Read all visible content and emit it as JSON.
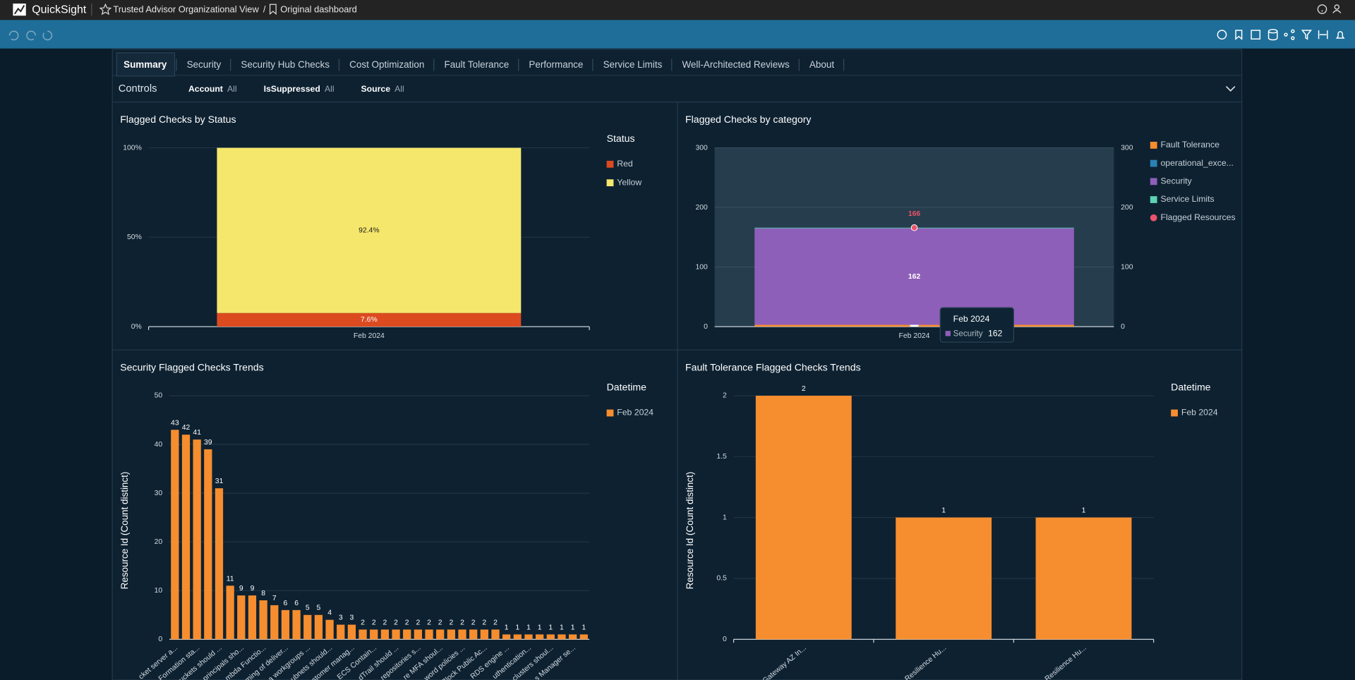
{
  "header": {
    "app": "QuickSight",
    "breadcrumb": [
      "Trusted Advisor Organizational View",
      "Original dashboard"
    ],
    "separator": "/"
  },
  "tabs": {
    "items": [
      "Summary",
      "Security",
      "Security Hub Checks",
      "Cost Optimization",
      "Fault Tolerance",
      "Performance",
      "Service Limits",
      "Well-Architected Reviews",
      "About"
    ],
    "active": 0
  },
  "controls": {
    "title": "Controls",
    "filters": [
      {
        "name": "Account",
        "value": "All"
      },
      {
        "name": "IsSuppressed",
        "value": "All"
      },
      {
        "name": "Source",
        "value": "All"
      }
    ]
  },
  "chart_data": [
    {
      "type": "bar",
      "stacked": true,
      "title": "Flagged Checks by Status",
      "legend_title": "Status",
      "categories": [
        "Feb 2024"
      ],
      "series": [
        {
          "name": "Red",
          "color": "#dc4a20",
          "values": [
            7.6
          ],
          "value_labels": [
            "7.6%"
          ]
        },
        {
          "name": "Yellow",
          "color": "#f5e76c",
          "values": [
            92.4
          ],
          "value_labels": [
            "92.4%"
          ]
        }
      ],
      "ylim": [
        0,
        100
      ],
      "yticks": [
        {
          "value": 0,
          "label": "0%"
        },
        {
          "value": 50,
          "label": "50%"
        },
        {
          "value": 100,
          "label": "100%"
        }
      ],
      "grid": true
    },
    {
      "type": "bar",
      "stacked": true,
      "title": "Flagged Checks by category",
      "categories": [
        "Feb 2024"
      ],
      "series": [
        {
          "name": "Fault Tolerance",
          "color": "#f68d2e",
          "values": [
            3
          ],
          "show_label": true
        },
        {
          "name": "operational_exce...",
          "color": "#2a82b4",
          "values": [
            0
          ]
        },
        {
          "name": "Security",
          "color": "#8e5fb8",
          "values": [
            162
          ],
          "show_label": true
        },
        {
          "name": "Service Limits",
          "color": "#5cd3b2",
          "values": [
            1
          ]
        },
        {
          "name": "Flagged Resources",
          "color": "#e9536b",
          "type": "line",
          "axis": "y2",
          "values": [
            166
          ],
          "show_label": true
        }
      ],
      "ylim": [
        0,
        300
      ],
      "yticks": [
        0,
        100,
        200,
        300
      ],
      "y2lim": [
        0,
        300
      ],
      "y2ticks": [
        0,
        100,
        200,
        300
      ],
      "grid": true,
      "tooltip": {
        "category": 0,
        "series": 2
      }
    },
    {
      "type": "bar",
      "title": "Security Flagged Checks Trends",
      "y_label": "Resource Id (Count distinct)",
      "legend_title": "Datetime",
      "categories": [
        "cket server a...",
        null,
        "Formation sta...",
        null,
        "uckets should ...",
        null,
        "principals sho...",
        null,
        "mbda Functio...",
        null,
        "ming of deliver...",
        null,
        "a workgroups ...",
        null,
        "ubnets should...",
        null,
        "stomer manag...",
        null,
        "ECS Contain...",
        null,
        "dTrail should ...",
        null,
        "repositories s...",
        null,
        "re MFA shoul...",
        null,
        "word policies ...",
        null,
        "Block Public Ac...",
        null,
        "RDS engine ...",
        null,
        "uthentication...",
        null,
        "clusters shoul...",
        null,
        "s Manager se...",
        null
      ],
      "series": [
        {
          "name": "Feb 2024",
          "color": "#f68d2e",
          "values": [
            43,
            42,
            41,
            39,
            31,
            11,
            9,
            9,
            8,
            7,
            6,
            6,
            5,
            5,
            4,
            3,
            3,
            2,
            2,
            2,
            2,
            2,
            2,
            2,
            2,
            2,
            2,
            2,
            2,
            2,
            1,
            1,
            1,
            1,
            1,
            1,
            1,
            1
          ]
        }
      ],
      "ylim": [
        0,
        50
      ],
      "yticks": [
        0,
        10,
        20,
        30,
        40,
        50
      ],
      "grid": true
    },
    {
      "type": "bar",
      "title": "Fault Tolerance Flagged Checks Trends",
      "y_label": "Resource Id (Count distinct)",
      "legend_title": "Datetime",
      "categories": [
        "Gateway AZ In...",
        "Resilience Hu...",
        "Resilience Hu..."
      ],
      "series": [
        {
          "name": "Feb 2024",
          "color": "#f68d2e",
          "values": [
            2,
            1,
            1
          ]
        }
      ],
      "ylim": [
        0,
        2
      ],
      "yticks": [
        0,
        0.5,
        1,
        1.5,
        2
      ],
      "grid": true
    }
  ]
}
